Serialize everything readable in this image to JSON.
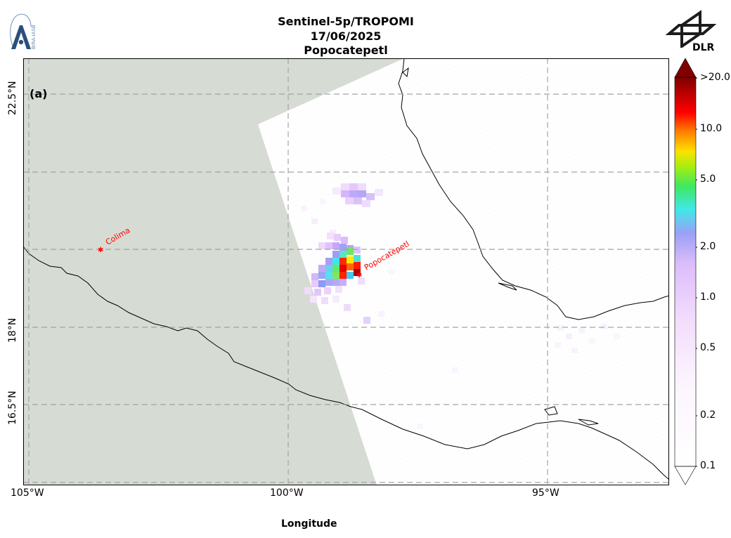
{
  "header": {
    "line1": "Sentinel-5p/TROPOMI",
    "line2": "17/06/2025",
    "line3": "Popocatepetl"
  },
  "logos": {
    "left_text": "BIRA-IASB",
    "right_text": "DLR"
  },
  "map": {
    "panel_label": "(a)",
    "x_label": "Longitude",
    "x_ticks": [
      "105°W",
      "100°W",
      "95°W"
    ],
    "y_ticks": [
      "22.5°N",
      "18°N",
      "16.5°N"
    ],
    "colors": {
      "no_data": "#d6dbd4",
      "coastline": "#000000",
      "grid": "#a0a0a0",
      "marker": "#ff0000"
    },
    "volcanoes": [
      {
        "name": "Colima"
      },
      {
        "name": "Popocatepetl"
      }
    ]
  },
  "colorbar": {
    "scale": "log",
    "ticks": [
      ">20.0",
      "10.0",
      "5.0",
      "2.0",
      "1.0",
      "0.5",
      "0.2",
      "0.1"
    ]
  }
}
